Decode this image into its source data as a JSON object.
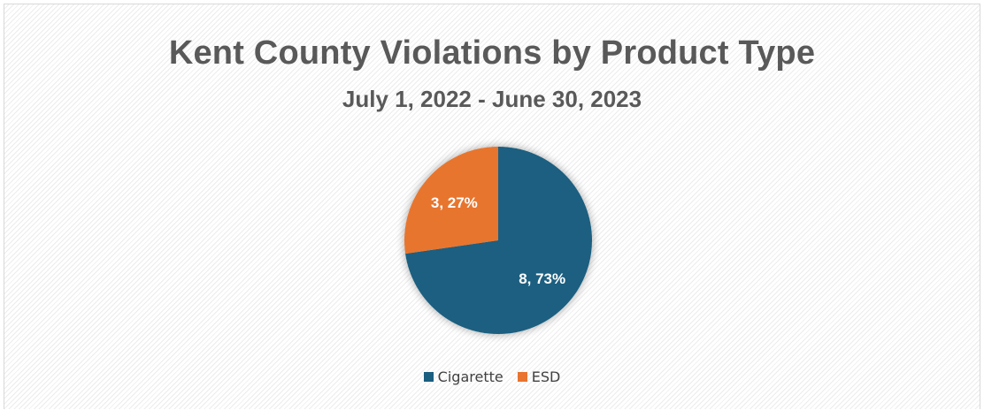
{
  "chart_data": {
    "type": "pie",
    "title": "Kent County Violations by Product Type",
    "subtitle": "July 1, 2022 - June 30, 2023",
    "categories": [
      "Cigarette",
      "ESD"
    ],
    "values": [
      8,
      3
    ],
    "percentages": [
      "73%",
      "27%"
    ],
    "data_labels": [
      "8, 73%",
      "3, 27%"
    ],
    "colors": [
      "#1A5E80",
      "#E8742F"
    ],
    "legend_position": "bottom"
  },
  "legend": {
    "items": [
      {
        "label": "Cigarette",
        "color": "#1A5E80"
      },
      {
        "label": "ESD",
        "color": "#E8742F"
      }
    ]
  }
}
